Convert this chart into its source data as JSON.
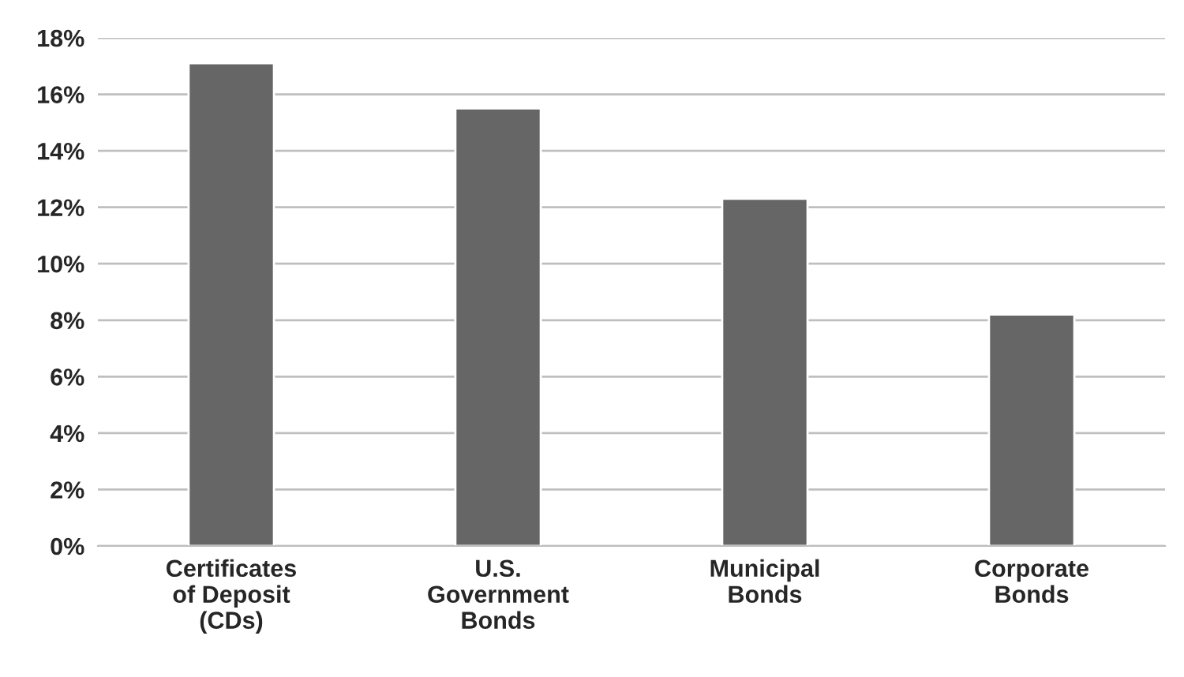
{
  "chart_data": {
    "type": "bar",
    "categories": [
      "Certificates\nof Deposit\n(CDs)",
      "U.S.\nGovernment\nBonds",
      "Municipal\nBonds",
      "Corporate\nBonds"
    ],
    "values": [
      17.1,
      15.5,
      12.3,
      8.2
    ],
    "color": "#666666",
    "ylim": [
      0,
      18
    ],
    "yticks": [
      {
        "value": 0,
        "label": "0%"
      },
      {
        "value": 2,
        "label": "2%"
      },
      {
        "value": 4,
        "label": "4%"
      },
      {
        "value": 6,
        "label": "6%"
      },
      {
        "value": 8,
        "label": "8%"
      },
      {
        "value": 10,
        "label": "10%"
      },
      {
        "value": 12,
        "label": "12%"
      },
      {
        "value": 14,
        "label": "14%"
      },
      {
        "value": 16,
        "label": "16%"
      },
      {
        "value": 18,
        "label": "18%"
      }
    ],
    "grid": "y"
  }
}
